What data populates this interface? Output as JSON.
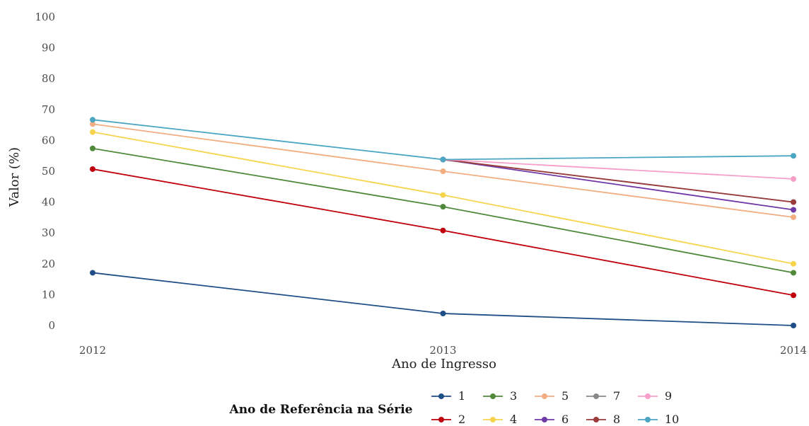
{
  "chart_data": {
    "type": "line",
    "title": "",
    "xlabel": "Ano de Ingresso",
    "ylabel": "Valor (%)",
    "x": [
      "2012",
      "2013",
      "2014"
    ],
    "ylim": [
      0,
      100
    ],
    "yticks": [
      0,
      10,
      20,
      30,
      40,
      50,
      60,
      70,
      80,
      90,
      100
    ],
    "grid": false,
    "legend": {
      "title": "Ano de Referência na Série",
      "position": "bottom"
    },
    "series": [
      {
        "name": "1",
        "color": "#1f4e87",
        "values": [
          17.1,
          3.9,
          0.0
        ]
      },
      {
        "name": "2",
        "color": "#c0000c",
        "values": [
          50.7,
          30.8,
          9.8
        ]
      },
      {
        "name": "3",
        "color": "#4f8a3a",
        "values": [
          57.4,
          38.5,
          17.1
        ]
      },
      {
        "name": "4",
        "color": "#f7d44d",
        "values": [
          62.7,
          42.3,
          20.0
        ]
      },
      {
        "name": "5",
        "color": "#f2ad82",
        "values": [
          65.3,
          50.0,
          35.1
        ]
      },
      {
        "name": "6",
        "color": "#6f3aa8",
        "values": [
          null,
          53.8,
          37.5
        ]
      },
      {
        "name": "7",
        "color": "#8a8a8a",
        "values": [
          null,
          53.8,
          40.0
        ]
      },
      {
        "name": "8",
        "color": "#9a3a3a",
        "values": [
          null,
          53.8,
          40.0
        ]
      },
      {
        "name": "9",
        "color": "#f59fc9",
        "values": [
          null,
          53.8,
          47.5
        ]
      },
      {
        "name": "10",
        "color": "#4aa6c2",
        "values": [
          66.7,
          53.8,
          55.0
        ]
      }
    ]
  }
}
